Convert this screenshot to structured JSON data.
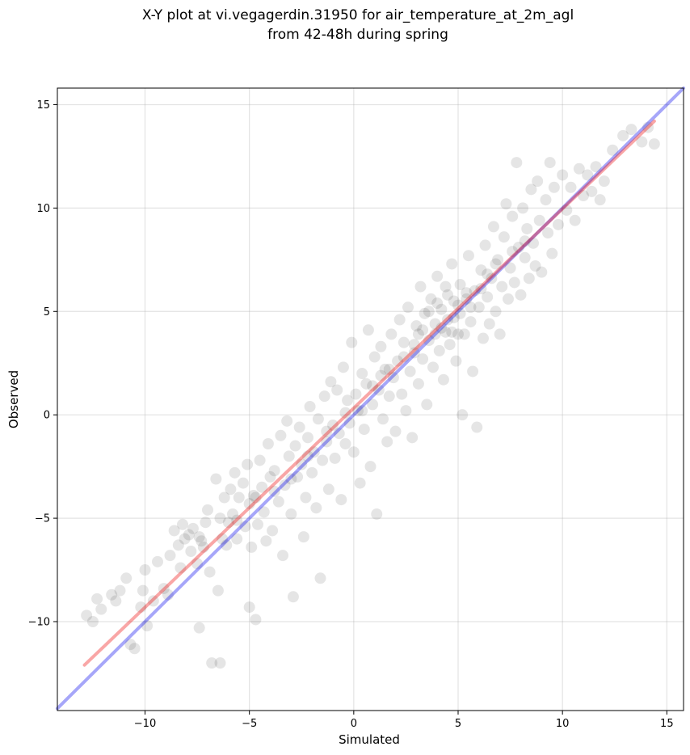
{
  "chart_data": {
    "type": "scatter",
    "title_lines": [
      "X-Y plot at vi.vegagerdin.31950 for air_temperature_at_2m_agl",
      "from 42-48h during spring"
    ],
    "xlabel": "Simulated",
    "ylabel": "Observed",
    "xlim": [
      -14.2,
      15.8
    ],
    "ylim": [
      -14.3,
      15.8
    ],
    "xticks": [
      -10,
      -5,
      0,
      5,
      10,
      15
    ],
    "yticks": [
      -10,
      -5,
      0,
      5,
      10,
      15
    ],
    "xtick_labels": [
      "−10",
      "−5",
      "0",
      "5",
      "10",
      "15"
    ],
    "ytick_labels": [
      "−10",
      "−5",
      "0",
      "5",
      "10",
      "15"
    ],
    "grid": true,
    "point_color": "#000000",
    "point_alpha": 0.1,
    "reference_line": {
      "color": "#0000ee",
      "alpha": 0.35,
      "x": [
        -14.2,
        15.8
      ],
      "y": [
        -14.2,
        15.8
      ]
    },
    "fit_line": {
      "color": "#ee0000",
      "alpha": 0.35,
      "x": [
        -12.9,
        14.4
      ],
      "y": [
        -12.1,
        14.2
      ]
    },
    "scatter_points": [
      [
        -12.8,
        -9.7
      ],
      [
        -12.5,
        -10.0
      ],
      [
        -12.3,
        -8.9
      ],
      [
        -12.1,
        -9.4
      ],
      [
        -11.6,
        -8.7
      ],
      [
        -11.4,
        -9.0
      ],
      [
        -11.2,
        -8.5
      ],
      [
        -10.9,
        -7.9
      ],
      [
        -10.7,
        -11.1
      ],
      [
        -10.5,
        -11.3
      ],
      [
        -10.2,
        -9.3
      ],
      [
        -10.1,
        -8.5
      ],
      [
        -10.0,
        -7.5
      ],
      [
        -9.9,
        -10.2
      ],
      [
        -9.6,
        -9.0
      ],
      [
        -9.4,
        -7.1
      ],
      [
        -9.1,
        -8.4
      ],
      [
        -8.9,
        -8.7
      ],
      [
        -8.8,
        -6.8
      ],
      [
        -8.6,
        -5.6
      ],
      [
        -8.4,
        -6.3
      ],
      [
        -8.3,
        -7.4
      ],
      [
        -8.2,
        -5.3
      ],
      [
        -8.1,
        -6.0
      ],
      [
        -7.9,
        -5.8
      ],
      [
        -7.8,
        -6.6
      ],
      [
        -7.7,
        -5.5
      ],
      [
        -7.5,
        -7.2
      ],
      [
        -7.4,
        -5.9
      ],
      [
        -7.3,
        -6.1
      ],
      [
        -7.1,
        -5.2
      ],
      [
        -7.0,
        -4.6
      ],
      [
        -7.4,
        -10.3
      ],
      [
        -6.9,
        -7.6
      ],
      [
        -6.8,
        -12.0
      ],
      [
        -6.4,
        -12.0
      ],
      [
        -6.6,
        -3.1
      ],
      [
        -6.5,
        -8.5
      ],
      [
        -6.4,
        -5.0
      ],
      [
        -6.2,
        -4.0
      ],
      [
        -6.1,
        -6.3
      ],
      [
        -6.0,
        -5.2
      ],
      [
        -5.9,
        -3.6
      ],
      [
        -5.8,
        -4.8
      ],
      [
        -5.7,
        -2.8
      ],
      [
        -5.6,
        -6.0
      ],
      [
        -5.5,
        -4.0
      ],
      [
        -5.3,
        -3.3
      ],
      [
        -5.2,
        -5.4
      ],
      [
        -5.1,
        -2.4
      ],
      [
        -5.0,
        -4.3
      ],
      [
        -5.0,
        -9.3
      ],
      [
        -4.9,
        -6.4
      ],
      [
        -4.8,
        -3.9
      ],
      [
        -4.7,
        -9.9
      ],
      [
        -4.6,
        -5.3
      ],
      [
        -4.5,
        -2.2
      ],
      [
        -4.4,
        -3.5
      ],
      [
        -4.3,
        -4.7
      ],
      [
        -4.2,
        -6.1
      ],
      [
        -4.1,
        -1.4
      ],
      [
        -4.0,
        -3.0
      ],
      [
        -3.9,
        -5.6
      ],
      [
        -3.8,
        -2.7
      ],
      [
        -3.6,
        -4.2
      ],
      [
        -3.5,
        -1.0
      ],
      [
        -3.4,
        -6.8
      ],
      [
        -3.3,
        -3.4
      ],
      [
        -3.2,
        -0.3
      ],
      [
        -3.1,
        -2.0
      ],
      [
        -3.0,
        -4.8
      ],
      [
        -2.9,
        -8.8
      ],
      [
        -2.8,
        -1.5
      ],
      [
        -2.7,
        -3.0
      ],
      [
        -2.6,
        -0.6
      ],
      [
        -2.5,
        -2.4
      ],
      [
        -2.4,
        -5.9
      ],
      [
        -2.3,
        -4.0
      ],
      [
        -2.2,
        -1.1
      ],
      [
        -2.1,
        0.4
      ],
      [
        -2.0,
        -2.8
      ],
      [
        -1.9,
        -1.8
      ],
      [
        -1.8,
        -4.5
      ],
      [
        -1.7,
        -0.2
      ],
      [
        -1.6,
        -7.9
      ],
      [
        -1.5,
        -2.2
      ],
      [
        -1.4,
        0.9
      ],
      [
        -1.3,
        -1.3
      ],
      [
        -1.2,
        -3.6
      ],
      [
        -1.1,
        1.6
      ],
      [
        -1.0,
        -0.5
      ],
      [
        -0.9,
        -2.1
      ],
      [
        -0.8,
        1.2
      ],
      [
        -0.7,
        -0.9
      ],
      [
        -0.6,
        -4.1
      ],
      [
        -0.5,
        2.3
      ],
      [
        -0.4,
        -1.4
      ],
      [
        -0.3,
        0.7
      ],
      [
        -0.2,
        -0.4
      ],
      [
        -0.1,
        3.5
      ],
      [
        0.0,
        -1.8
      ],
      [
        0.1,
        1.0
      ],
      [
        0.2,
        0.2
      ],
      [
        0.3,
        -3.3
      ],
      [
        0.4,
        2.0
      ],
      [
        0.5,
        -0.7
      ],
      [
        0.6,
        1.5
      ],
      [
        0.7,
        4.1
      ],
      [
        0.8,
        -2.5
      ],
      [
        0.9,
        0.5
      ],
      [
        1.0,
        2.8
      ],
      [
        1.1,
        -4.8
      ],
      [
        1.2,
        1.2
      ],
      [
        1.3,
        3.3
      ],
      [
        1.4,
        -0.2
      ],
      [
        1.5,
        2.2
      ],
      [
        1.6,
        -1.3
      ],
      [
        1.7,
        0.9
      ],
      [
        1.8,
        3.9
      ],
      [
        1.9,
        1.8
      ],
      [
        2.0,
        -0.8
      ],
      [
        2.1,
        2.6
      ],
      [
        2.2,
        4.6
      ],
      [
        2.3,
        1.0
      ],
      [
        2.4,
        3.5
      ],
      [
        2.5,
        0.2
      ],
      [
        2.6,
        5.2
      ],
      [
        2.7,
        2.1
      ],
      [
        2.8,
        -1.1
      ],
      [
        2.9,
        3.0
      ],
      [
        3.0,
        4.3
      ],
      [
        3.1,
        1.5
      ],
      [
        3.2,
        6.2
      ],
      [
        3.3,
        2.7
      ],
      [
        3.4,
        4.9
      ],
      [
        3.5,
        0.5
      ],
      [
        3.6,
        3.6
      ],
      [
        3.7,
        5.6
      ],
      [
        3.8,
        2.3
      ],
      [
        3.9,
        4.4
      ],
      [
        4.0,
        6.7
      ],
      [
        4.1,
        3.1
      ],
      [
        4.2,
        5.1
      ],
      [
        4.3,
        1.7
      ],
      [
        4.4,
        4.0
      ],
      [
        4.5,
        5.8
      ],
      [
        4.6,
        3.4
      ],
      [
        4.7,
        7.3
      ],
      [
        4.8,
        4.7
      ],
      [
        4.9,
        2.6
      ],
      [
        5.0,
        5.3
      ],
      [
        5.1,
        6.3
      ],
      [
        5.2,
        0.0
      ],
      [
        5.3,
        3.9
      ],
      [
        5.4,
        5.6
      ],
      [
        5.5,
        7.7
      ],
      [
        5.6,
        4.5
      ],
      [
        5.7,
        2.1
      ],
      [
        5.8,
        6.0
      ],
      [
        5.9,
        -0.6
      ],
      [
        6.0,
        5.2
      ],
      [
        6.1,
        7.0
      ],
      [
        6.2,
        3.7
      ],
      [
        6.3,
        8.2
      ],
      [
        6.4,
        5.7
      ],
      [
        6.5,
        4.4
      ],
      [
        6.6,
        6.6
      ],
      [
        6.7,
        9.1
      ],
      [
        6.8,
        5.0
      ],
      [
        6.9,
        7.5
      ],
      [
        7.0,
        3.9
      ],
      [
        7.1,
        6.2
      ],
      [
        7.2,
        8.6
      ],
      [
        7.3,
        10.2
      ],
      [
        7.4,
        5.6
      ],
      [
        7.5,
        7.1
      ],
      [
        7.6,
        9.6
      ],
      [
        7.7,
        6.4
      ],
      [
        7.8,
        12.2
      ],
      [
        7.9,
        8.1
      ],
      [
        8.0,
        5.8
      ],
      [
        8.1,
        10.0
      ],
      [
        8.2,
        7.6
      ],
      [
        8.3,
        9.0
      ],
      [
        8.4,
        6.6
      ],
      [
        8.5,
        10.9
      ],
      [
        8.6,
        8.3
      ],
      [
        8.7,
        7.2
      ],
      [
        8.8,
        11.3
      ],
      [
        8.9,
        9.4
      ],
      [
        9.0,
        6.9
      ],
      [
        9.2,
        10.4
      ],
      [
        9.3,
        8.8
      ],
      [
        9.4,
        12.2
      ],
      [
        9.5,
        7.8
      ],
      [
        9.6,
        11.0
      ],
      [
        9.8,
        9.2
      ],
      [
        10.0,
        11.6
      ],
      [
        10.2,
        9.9
      ],
      [
        10.4,
        11.0
      ],
      [
        10.6,
        9.4
      ],
      [
        10.8,
        11.9
      ],
      [
        11.0,
        10.6
      ],
      [
        11.2,
        11.6
      ],
      [
        11.4,
        10.8
      ],
      [
        11.6,
        12.0
      ],
      [
        11.8,
        10.4
      ],
      [
        12.0,
        11.3
      ],
      [
        12.4,
        12.8
      ],
      [
        12.9,
        13.5
      ],
      [
        13.3,
        13.8
      ],
      [
        13.8,
        13.2
      ],
      [
        14.1,
        13.9
      ],
      [
        14.4,
        13.1
      ],
      [
        3.6,
        5.0
      ],
      [
        4.2,
        4.2
      ],
      [
        4.8,
        5.5
      ],
      [
        5.1,
        4.9
      ],
      [
        4.5,
        4.6
      ],
      [
        3.9,
        3.9
      ],
      [
        5.4,
        5.9
      ],
      [
        4.0,
        5.4
      ],
      [
        4.7,
        4.0
      ],
      [
        5.6,
        5.2
      ],
      [
        3.3,
        4.1
      ],
      [
        6.1,
        6.1
      ],
      [
        2.9,
        3.4
      ],
      [
        6.4,
        6.8
      ],
      [
        1.7,
        2.2
      ],
      [
        0.9,
        1.4
      ],
      [
        0.4,
        0.2
      ],
      [
        -0.4,
        0.1
      ],
      [
        -1.3,
        -0.8
      ],
      [
        -2.2,
        -2.0
      ],
      [
        -3.0,
        -3.1
      ],
      [
        -3.8,
        -3.7
      ],
      [
        -4.7,
        -4.0
      ],
      [
        -5.6,
        -5.1
      ],
      [
        -6.3,
        -6.0
      ],
      [
        -7.2,
        -6.4
      ],
      [
        7.6,
        7.9
      ],
      [
        8.2,
        8.4
      ],
      [
        6.8,
        7.3
      ],
      [
        5.0,
        3.9
      ],
      [
        4.4,
        6.2
      ],
      [
        3.1,
        3.9
      ],
      [
        2.4,
        2.8
      ],
      [
        1.3,
        1.9
      ]
    ]
  }
}
